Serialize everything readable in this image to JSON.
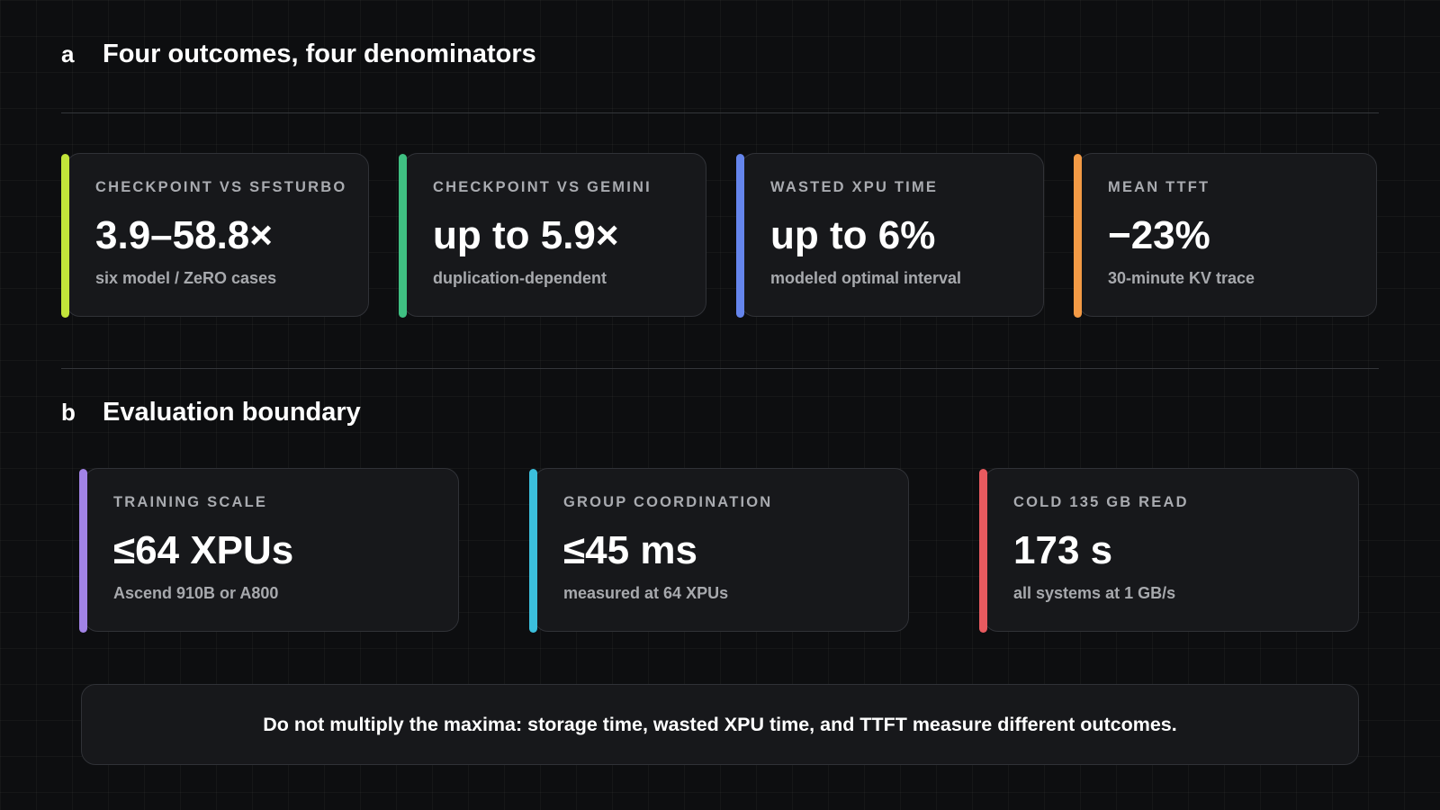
{
  "section_a": {
    "letter": "a",
    "title": "Four outcomes, four denominators",
    "cards": [
      {
        "label": "CHECKPOINT VS SFSTURBO",
        "value": "3.9–58.8×",
        "caption": "six model / ZeRO cases",
        "accent": "#c2e43a"
      },
      {
        "label": "CHECKPOINT VS GEMINI",
        "value": "up to 5.9×",
        "caption": "duplication-dependent",
        "accent": "#3fc082"
      },
      {
        "label": "WASTED XPU TIME",
        "value": "up to 6%",
        "caption": "modeled optimal interval",
        "accent": "#6585ec"
      },
      {
        "label": "MEAN TTFT",
        "value": "−23%",
        "caption": "30-minute KV trace",
        "accent": "#f39a45"
      }
    ]
  },
  "section_b": {
    "letter": "b",
    "title": "Evaluation boundary",
    "cards": [
      {
        "label": "TRAINING SCALE",
        "value": "≤64 XPUs",
        "caption": "Ascend 910B or A800",
        "accent": "#a183e6"
      },
      {
        "label": "GROUP COORDINATION",
        "value": "≤45 ms",
        "caption": "measured at 64 XPUs",
        "accent": "#3bbfdc"
      },
      {
        "label": "COLD 135 GB READ",
        "value": "173 s",
        "caption": "all systems at 1 GB/s",
        "accent": "#e85a5f"
      }
    ]
  },
  "note": {
    "text": "Do not multiply the maxima: storage time, wasted XPU time, and TTFT measure different outcomes."
  }
}
